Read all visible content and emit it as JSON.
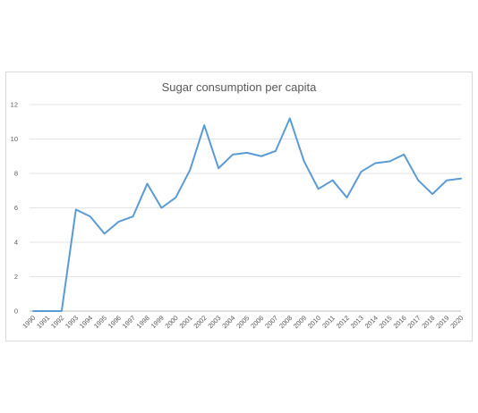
{
  "chart_data": {
    "type": "line",
    "title": "Sugar consumption per capita",
    "xlabel": "",
    "ylabel": "",
    "ylim": [
      0,
      12
    ],
    "yticks": [
      0,
      2,
      4,
      6,
      8,
      10,
      12
    ],
    "grid": true,
    "legend": "none",
    "categories": [
      "1990",
      "1991",
      "1992",
      "1993",
      "1994",
      "1995",
      "1996",
      "1997",
      "1998",
      "1999",
      "2000",
      "2001",
      "2002",
      "2003",
      "2004",
      "2005",
      "2006",
      "2007",
      "2008",
      "2009",
      "2010",
      "2011",
      "2012",
      "2013",
      "2014",
      "2015",
      "2016",
      "2017",
      "2018",
      "2019",
      "2020"
    ],
    "series": [
      {
        "color": "#5b9bd5",
        "values": [
          0,
          0,
          0,
          5.9,
          5.5,
          4.5,
          5.2,
          5.5,
          7.4,
          6.0,
          6.6,
          8.2,
          10.8,
          8.3,
          9.1,
          9.2,
          9.0,
          9.3,
          11.2,
          8.7,
          7.1,
          7.6,
          6.6,
          8.1,
          8.6,
          8.7,
          9.1,
          7.6,
          6.8,
          7.6,
          7.7
        ]
      }
    ]
  }
}
